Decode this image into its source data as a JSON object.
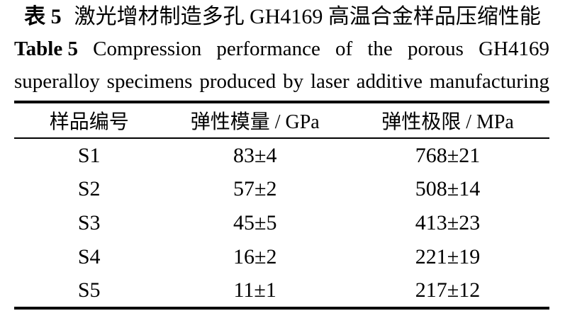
{
  "caption_zh": {
    "label": "表 5",
    "text": "激光增材制造多孔 GH4169 高温合金样品压缩性能"
  },
  "caption_en": {
    "label": "Table 5",
    "line1_rest": "Compression performance of the porous GH4169",
    "line2": "superalloy specimens produced by laser additive manufacturing"
  },
  "table": {
    "columns": [
      "样品编号",
      "弹性模量 / GPa",
      "弹性极限 / MPa"
    ],
    "rows": [
      [
        "S1",
        "83±4",
        "768±21"
      ],
      [
        "S2",
        "57±2",
        "508±14"
      ],
      [
        "S3",
        "45±5",
        "413±23"
      ],
      [
        "S4",
        "16±2",
        "221±19"
      ],
      [
        "S5",
        "11±1",
        "217±12"
      ]
    ]
  },
  "colors": {
    "text": "#000000",
    "background": "#ffffff",
    "rule": "#000000"
  }
}
